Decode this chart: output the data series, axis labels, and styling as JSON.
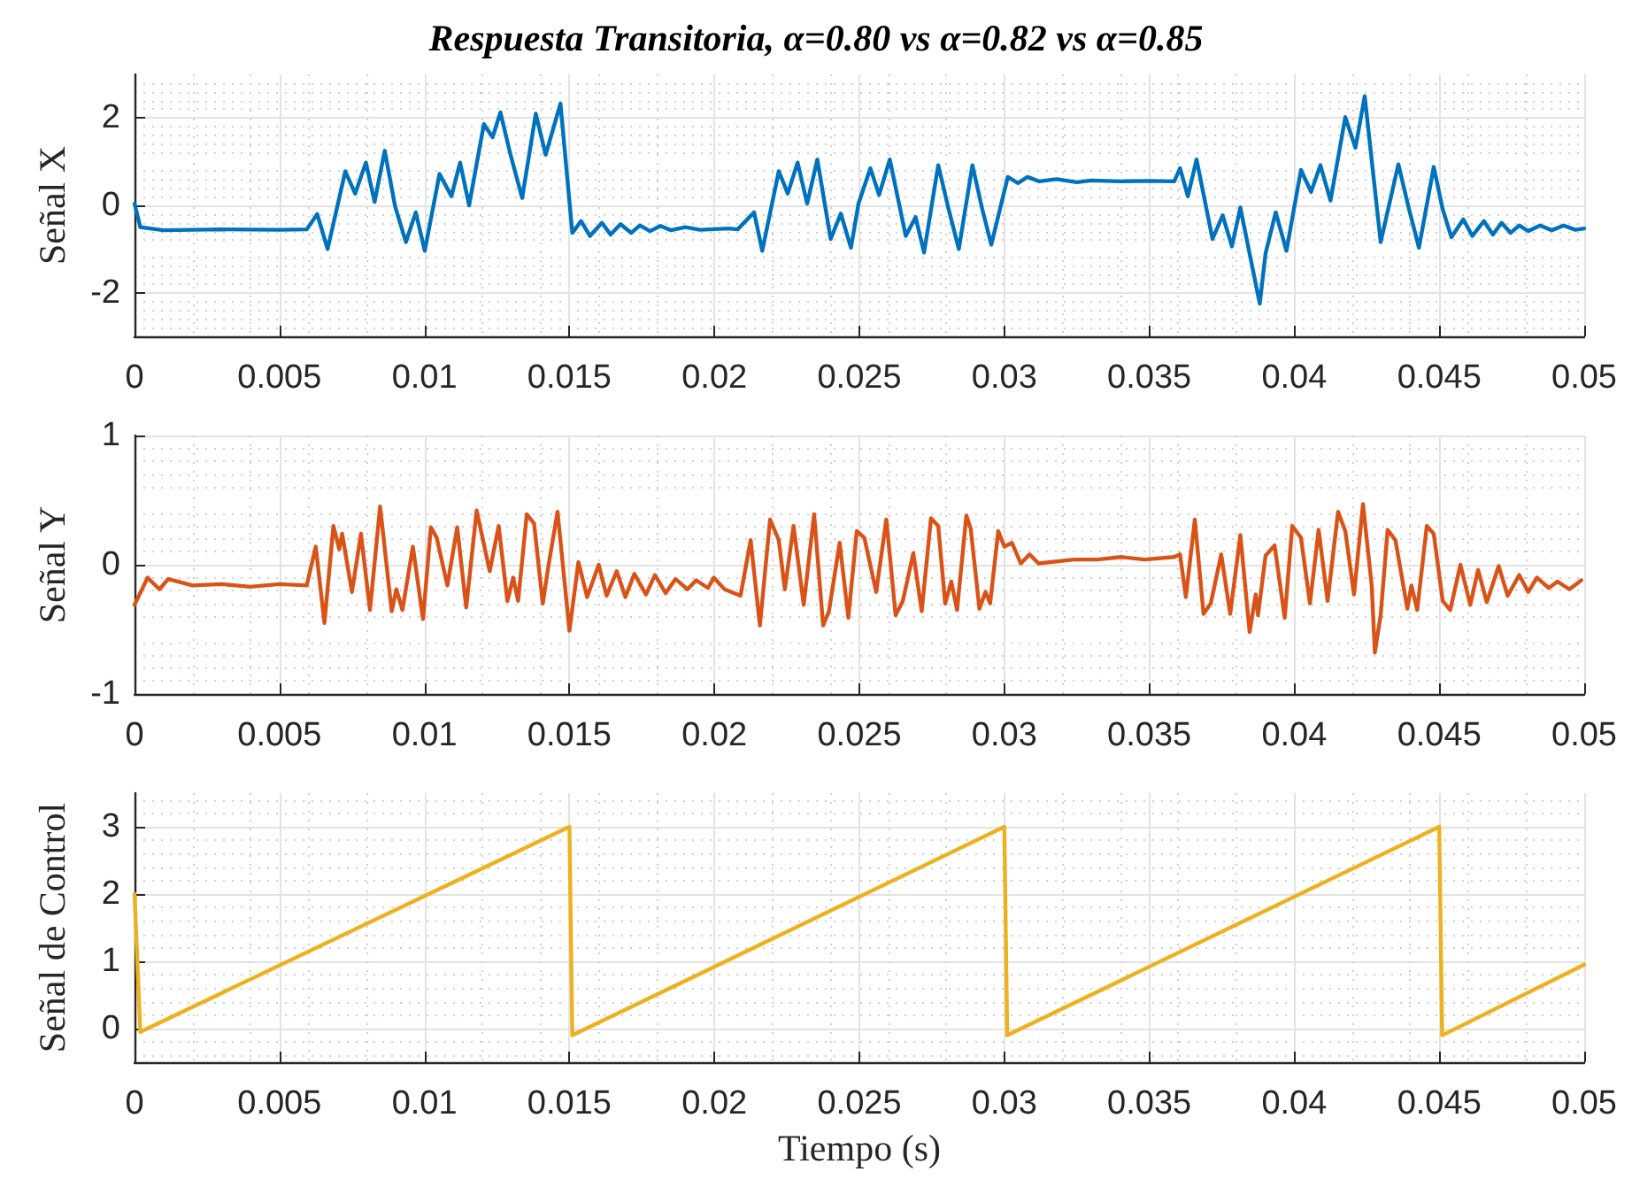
{
  "chart_data": [
    {
      "type": "line",
      "title": "Respuesta Transitoria, α=0.80 vs α=0.82 vs α=0.85",
      "ylabel": "Señal X",
      "xlim": [
        0,
        0.05
      ],
      "xticks": [
        0,
        0.005,
        0.01,
        0.015,
        0.02,
        0.025,
        0.03,
        0.035,
        0.04,
        0.045,
        0.05
      ],
      "ylim": [
        -3,
        3
      ],
      "yticks": [
        -2,
        0,
        2
      ],
      "grid": true,
      "x": [
        0,
        0.0002,
        0.001,
        0.003,
        0.005,
        0.00594,
        0.0063,
        0.00666,
        0.00727,
        0.00761,
        0.00798,
        0.00828,
        0.00863,
        0.00899,
        0.00936,
        0.0097,
        0.01001,
        0.01052,
        0.01093,
        0.01123,
        0.01154,
        0.01205,
        0.01235,
        0.01262,
        0.01296,
        0.01337,
        0.01384,
        0.01418,
        0.01469,
        0.0151,
        0.0154,
        0.01571,
        0.01612,
        0.01642,
        0.01676,
        0.01713,
        0.01743,
        0.01778,
        0.01814,
        0.0185,
        0.019,
        0.0195,
        0.0205,
        0.0208,
        0.02137,
        0.02165,
        0.02222,
        0.02253,
        0.02287,
        0.0232,
        0.02355,
        0.02401,
        0.02436,
        0.02471,
        0.02497,
        0.02538,
        0.02568,
        0.02605,
        0.0266,
        0.02694,
        0.02723,
        0.02772,
        0.02808,
        0.02843,
        0.0289,
        0.02924,
        0.02955,
        0.03012,
        0.03047,
        0.0308,
        0.0312,
        0.0318,
        0.0325,
        0.033,
        0.034,
        0.035,
        0.03586,
        0.03606,
        0.03633,
        0.03663,
        0.03718,
        0.03753,
        0.03785,
        0.03814,
        0.0385,
        0.03881,
        0.03901,
        0.03936,
        0.03973,
        0.04023,
        0.04058,
        0.0409,
        0.04125,
        0.04176,
        0.04211,
        0.04243,
        0.04298,
        0.04359,
        0.04396,
        0.0443,
        0.04481,
        0.04512,
        0.04542,
        0.04583,
        0.04614,
        0.04654,
        0.04685,
        0.04715,
        0.04746,
        0.04776,
        0.04807,
        0.04848,
        0.04888,
        0.04929,
        0.04969,
        0.05
      ],
      "series": [
        {
          "color": "#0072bd",
          "values": [
            0.04,
            -0.5,
            -0.57,
            -0.55,
            -0.56,
            -0.55,
            -0.2,
            -1.0,
            0.78,
            0.27,
            0.98,
            0.08,
            1.25,
            -0.03,
            -0.84,
            -0.16,
            -1.04,
            0.72,
            0.21,
            0.98,
            0,
            1.86,
            1.56,
            2.13,
            1.18,
            0.17,
            2.1,
            1.16,
            2.33,
            -0.63,
            -0.36,
            -0.7,
            -0.4,
            -0.67,
            -0.43,
            -0.63,
            -0.46,
            -0.59,
            -0.47,
            -0.57,
            -0.5,
            -0.56,
            -0.53,
            -0.55,
            -0.16,
            -1.04,
            0.78,
            0.27,
            0.98,
            0.04,
            1.05,
            -0.77,
            -0.19,
            -0.97,
            0.04,
            0.85,
            0.24,
            1.05,
            -0.7,
            -0.27,
            -1.08,
            0.92,
            -0.09,
            -1.0,
            0.92,
            -0.09,
            -0.9,
            0.65,
            0.51,
            0.65,
            0.55,
            0.6,
            0.53,
            0.57,
            0.55,
            0.56,
            0.55,
            0.85,
            0.21,
            1.05,
            -0.77,
            -0.23,
            -0.94,
            -0.05,
            -1.24,
            -2.25,
            -1.1,
            -0.16,
            -1.04,
            0.81,
            0.31,
            0.92,
            0.11,
            2.02,
            1.32,
            2.5,
            -0.84,
            0.94,
            -0.09,
            -0.97,
            0.88,
            -0.09,
            -0.73,
            -0.32,
            -0.7,
            -0.36,
            -0.67,
            -0.4,
            -0.63,
            -0.46,
            -0.59,
            -0.46,
            -0.57,
            -0.46,
            -0.56,
            -0.53
          ]
        }
      ]
    },
    {
      "type": "line",
      "ylabel": "Señal Y",
      "xlim": [
        0,
        0.05
      ],
      "xticks": [
        0,
        0.005,
        0.01,
        0.015,
        0.02,
        0.025,
        0.03,
        0.035,
        0.04,
        0.045,
        0.05
      ],
      "ylim": [
        -1,
        1
      ],
      "yticks": [
        -1,
        0,
        1
      ],
      "grid": true,
      "x": [
        0,
        0.00045,
        0.00086,
        0.00116,
        0.002,
        0.003,
        0.004,
        0.005,
        0.00594,
        0.00625,
        0.00655,
        0.00686,
        0.00706,
        0.00716,
        0.0075,
        0.00781,
        0.00812,
        0.00847,
        0.00887,
        0.00903,
        0.00924,
        0.0096,
        0.00995,
        0.01022,
        0.01042,
        0.01079,
        0.01113,
        0.01144,
        0.0118,
        0.01225,
        0.01256,
        0.01286,
        0.01306,
        0.01323,
        0.01353,
        0.01378,
        0.01408,
        0.01429,
        0.01459,
        0.015,
        0.01531,
        0.01561,
        0.01601,
        0.01628,
        0.01663,
        0.01693,
        0.01724,
        0.01764,
        0.01795,
        0.01832,
        0.01866,
        0.01907,
        0.01937,
        0.01978,
        0.01998,
        0.02035,
        0.0209,
        0.02125,
        0.02157,
        0.02192,
        0.02222,
        0.02243,
        0.02273,
        0.02308,
        0.02344,
        0.02375,
        0.02395,
        0.02432,
        0.02462,
        0.02491,
        0.02517,
        0.02558,
        0.02593,
        0.02625,
        0.0265,
        0.02686,
        0.02715,
        0.02747,
        0.02772,
        0.02796,
        0.02817,
        0.02837,
        0.02869,
        0.02884,
        0.02914,
        0.02935,
        0.02951,
        0.02979,
        0.03,
        0.03026,
        0.03057,
        0.03087,
        0.03118,
        0.0324,
        0.03321,
        0.03402,
        0.03484,
        0.03586,
        0.03606,
        0.03626,
        0.03657,
        0.03687,
        0.03712,
        0.03748,
        0.03779,
        0.03814,
        0.03846,
        0.03867,
        0.03875,
        0.03901,
        0.03932,
        0.03967,
        0.03993,
        0.04023,
        0.04054,
        0.04084,
        0.04115,
        0.04151,
        0.04176,
        0.04206,
        0.04237,
        0.04267,
        0.04278,
        0.04298,
        0.04322,
        0.04349,
        0.0439,
        0.04404,
        0.04424,
        0.04457,
        0.04481,
        0.04512,
        0.04538,
        0.04573,
        0.04607,
        0.04634,
        0.04664,
        0.04705,
        0.04736,
        0.04776,
        0.04807,
        0.04837,
        0.04878,
        0.04908,
        0.04949,
        0.0499
      ],
      "series": [
        {
          "color": "#d95319",
          "values": [
            -0.31,
            -0.1,
            -0.19,
            -0.11,
            -0.16,
            -0.15,
            -0.17,
            -0.15,
            -0.16,
            0.14,
            -0.45,
            0.3,
            0.12,
            0.24,
            -0.21,
            0.24,
            -0.35,
            0.45,
            -0.36,
            -0.19,
            -0.35,
            0.14,
            -0.42,
            0.29,
            0.21,
            -0.16,
            0.29,
            -0.33,
            0.42,
            -0.05,
            0.3,
            -0.28,
            -0.1,
            -0.28,
            0.39,
            0.32,
            -0.3,
            0.01,
            0.41,
            -0.51,
            0.02,
            -0.25,
            0,
            -0.24,
            -0.05,
            -0.25,
            -0.07,
            -0.23,
            -0.08,
            -0.22,
            -0.11,
            -0.19,
            -0.12,
            -0.18,
            -0.1,
            -0.19,
            -0.24,
            0.19,
            -0.47,
            0.35,
            0.19,
            -0.19,
            0.3,
            -0.31,
            0.39,
            -0.47,
            -0.36,
            0.17,
            -0.41,
            0.26,
            0.21,
            -0.21,
            0.35,
            -0.39,
            -0.28,
            0.09,
            -0.36,
            0.36,
            0.3,
            -0.3,
            -0.13,
            -0.35,
            0.38,
            0.28,
            -0.34,
            -0.21,
            -0.3,
            0.26,
            0.14,
            0.17,
            0.01,
            0.08,
            0.01,
            0.04,
            0.04,
            0.06,
            0.04,
            0.06,
            0.08,
            -0.25,
            0.35,
            -0.38,
            -0.3,
            0.08,
            -0.38,
            0.23,
            -0.52,
            -0.23,
            -0.39,
            0.07,
            0.15,
            -0.41,
            0.3,
            0.21,
            -0.3,
            0.27,
            -0.28,
            0.41,
            0.26,
            -0.23,
            0.47,
            -0.16,
            -0.68,
            -0.39,
            0.27,
            0.19,
            -0.34,
            -0.16,
            -0.35,
            0.3,
            0.24,
            -0.28,
            -0.35,
            0,
            -0.31,
            -0.04,
            -0.29,
            -0.01,
            -0.24,
            -0.08,
            -0.21,
            -0.1,
            -0.18,
            -0.13,
            -0.19,
            -0.12
          ]
        }
      ]
    },
    {
      "type": "line",
      "ylabel": "Señal de Control",
      "xlabel": "Tiempo (s)",
      "xlim": [
        0,
        0.05
      ],
      "xticks": [
        0,
        0.005,
        0.01,
        0.015,
        0.02,
        0.025,
        0.03,
        0.035,
        0.04,
        0.045,
        0.05
      ],
      "ylim": [
        -0.5,
        3.5
      ],
      "yticks": [
        0,
        1,
        2,
        3
      ],
      "grid": true,
      "x": [
        0,
        0.0002,
        0.015,
        0.0151,
        0.03,
        0.0301,
        0.045,
        0.0451,
        0.05
      ],
      "series": [
        {
          "color": "#edb120",
          "values": [
            2,
            -0.05,
            3,
            -0.1,
            3,
            -0.1,
            3,
            -0.1,
            0.95
          ]
        }
      ]
    }
  ]
}
